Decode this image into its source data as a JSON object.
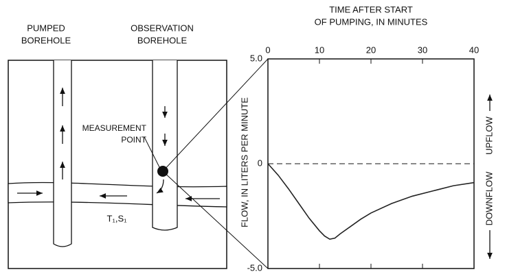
{
  "diagram": {
    "pumped_label": [
      "PUMPED",
      "BOREHOLE"
    ],
    "observation_label": [
      "OBSERVATION",
      "BOREHOLE"
    ],
    "measurement_label": [
      "MEASUREMENT",
      "POINT"
    ],
    "aquifer_label": "T₁,S₁"
  },
  "chart_data": {
    "type": "line",
    "x_label": [
      "TIME AFTER START",
      "OF PUMPING, IN MINUTES"
    ],
    "y_label": "FLOW, IN LITERS PER MINUTE",
    "direction_labels": {
      "up": "UPFLOW",
      "down": "DOWNFLOW"
    },
    "x": [
      0,
      2,
      4,
      6,
      8,
      10,
      11,
      12,
      13,
      14,
      16,
      18,
      20,
      24,
      28,
      32,
      36,
      40
    ],
    "series": [
      {
        "color": "#222222",
        "values": [
          0,
          -0.55,
          -1.2,
          -1.9,
          -2.6,
          -3.2,
          -3.45,
          -3.6,
          -3.55,
          -3.35,
          -3.0,
          -2.65,
          -2.35,
          -1.9,
          -1.55,
          -1.3,
          -1.05,
          -0.9
        ]
      }
    ],
    "xlim": [
      0,
      40
    ],
    "xticks": [
      0,
      10,
      20,
      30,
      40
    ],
    "ylim": [
      -5,
      5
    ],
    "yticks": [
      {
        "value": 5,
        "label": "5.0"
      },
      0,
      {
        "value": -5,
        "label": "-5.0"
      }
    ]
  }
}
